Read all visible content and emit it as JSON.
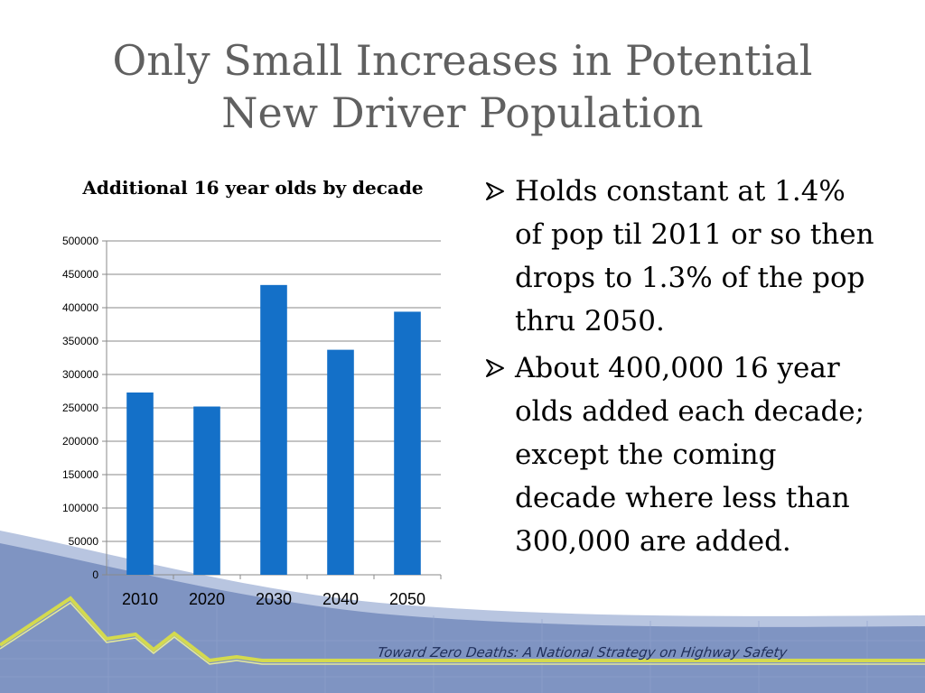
{
  "slide": {
    "title_line1": "Only Small Increases in Potential",
    "title_line2": "New Driver Population",
    "footer_text": "Toward Zero Deaths: A National Strategy on Highway Safety"
  },
  "bullets": [
    {
      "text": "Holds constant at 1.4% of pop til  2011 or so then drops to 1.3% of the pop thru 2050."
    },
    {
      "text": "About 400,000 16 year olds added each decade; except the coming decade where less than 300,000 are added."
    }
  ],
  "colors": {
    "bar": "#1470c8",
    "title": "#606060",
    "band_dark": "#7e93c0",
    "band_light": "#b4c2de",
    "footer_line": "#cfd64a"
  },
  "chart_data": {
    "type": "bar",
    "title": "Additional 16 year olds by decade",
    "categories": [
      "2010",
      "2020",
      "2030",
      "2040",
      "2050"
    ],
    "values": [
      273000,
      252000,
      434000,
      337000,
      394000
    ],
    "xlabel": "",
    "ylabel": "",
    "ylim": [
      0,
      500000
    ],
    "yticks": [
      "0",
      "50000",
      "100000",
      "150000",
      "200000",
      "250000",
      "300000",
      "350000",
      "400000",
      "450000",
      "500000"
    ],
    "grid": true,
    "legend": "none"
  }
}
